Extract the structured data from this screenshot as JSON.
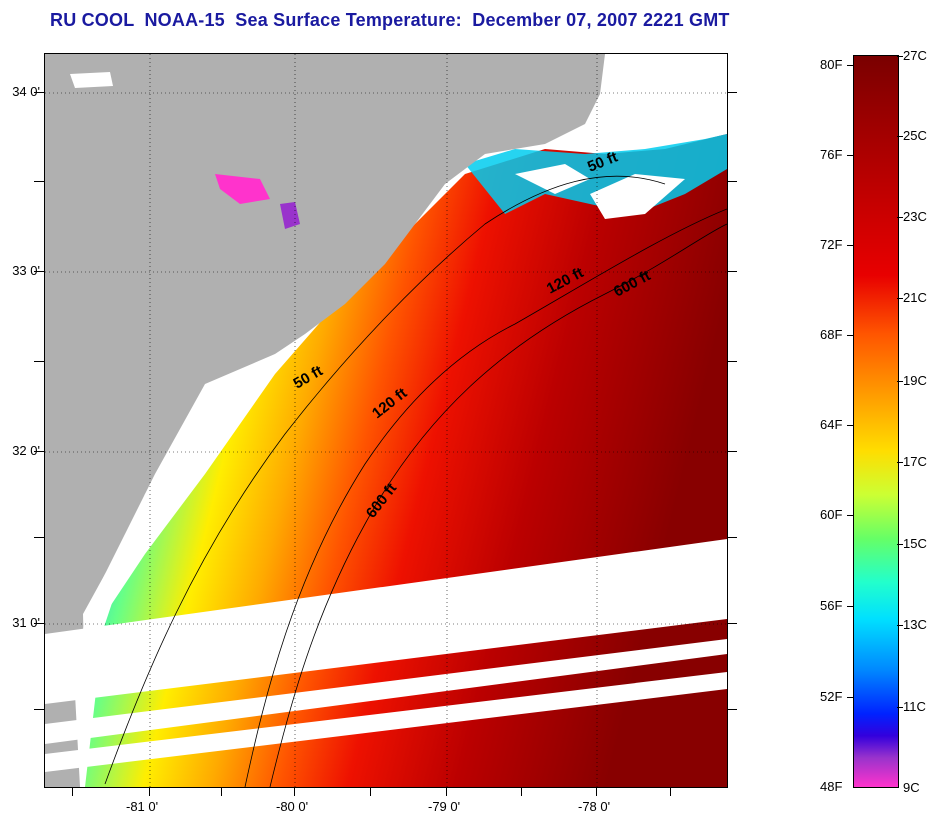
{
  "title": "RU COOL  NOAA-15  Sea Surface Temperature:  December 07, 2007 2221 GMT",
  "latitude_labels": [
    "34 0'",
    "33 0'",
    "32 0'",
    "31 0'"
  ],
  "longitude_labels": [
    "-81 0'",
    "-80 0'",
    "-79 0'",
    "-78 0'"
  ],
  "contours": [
    "50 ft",
    "120 ft",
    "600 ft",
    "50 ft",
    "120 ft",
    "600 ft"
  ],
  "colorbar": {
    "fahrenheit_labels": [
      "80F",
      "76F",
      "72F",
      "68F",
      "64F",
      "60F",
      "56F",
      "52F",
      "48F"
    ],
    "celsius_labels": [
      "27C",
      "25C",
      "23C",
      "21C",
      "19C",
      "17C",
      "15C",
      "13C",
      "11C",
      "9C"
    ],
    "colors": {
      "warm": "#7a0000",
      "mid": "#ffdd00",
      "cool": "#00e0ff",
      "cold": "#ff33cc"
    }
  },
  "map_colors": {
    "land": "#b0b0b0",
    "no_data": "#ffffff"
  }
}
